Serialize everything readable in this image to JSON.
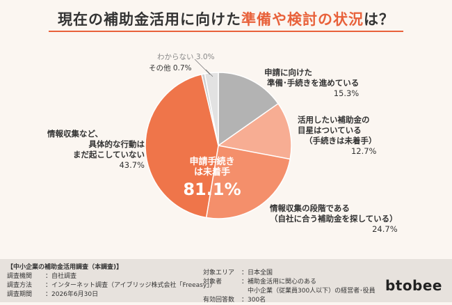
{
  "title": {
    "part1": "現在の補助金活用に向けた",
    "part2": "準備や検討の状況",
    "part3": "は？"
  },
  "chart_data": {
    "type": "pie",
    "slices": [
      {
        "label": "申請に向けた準備・手続きを進めている",
        "value": 15.3,
        "color": "#b3b3b3"
      },
      {
        "label": "活用したい補助金の目星はついている（手続きは未着手）",
        "value": 12.7,
        "color": "#f7ad93"
      },
      {
        "label": "情報収集の段階である（自社に合う補助金を探している）",
        "value": 24.7,
        "color": "#f48f6b"
      },
      {
        "label": "情報収集など、具体的な行動はまだ起こしていない",
        "value": 43.7,
        "color": "#ef754a"
      },
      {
        "label": "その他",
        "value": 0.7,
        "color": "#cfcfcf"
      },
      {
        "label": "わからない",
        "value": 3.0,
        "color": "#e2e2e2"
      }
    ],
    "center": {
      "line1": "申請手続き",
      "line2": "は未着手",
      "value": "81.1%"
    }
  },
  "labels": {
    "s1": {
      "line1": "申請に向けた",
      "line2": "準備･手続きを進めている",
      "pct": "15.3%"
    },
    "s2": {
      "line1": "活用したい補助金の",
      "line2": "目星はついている",
      "line3": "（手続きは未着手）",
      "pct": "12.7%"
    },
    "s3": {
      "line1": "情報収集の段階である",
      "line2": "（自社に合う補助金を探している）",
      "pct": "24.7%"
    },
    "s4": {
      "line1": "情報収集など、",
      "line2": "具体的な行動は",
      "line3": "まだ起こしていない",
      "pct": "43.7%"
    },
    "s5": {
      "text": "その他 0.7%"
    },
    "s6": {
      "text": "わからない 3.0%"
    }
  },
  "footer": {
    "heading": "【中小企業の補助金活用調査（本調査)】",
    "left": [
      {
        "k": "調査機関",
        "v": "：自社調査"
      },
      {
        "k": "調査方法",
        "v": "：インターネット調査（アイブリッジ株式会社「Freeasy」）"
      },
      {
        "k": "調査期間",
        "v": "：2026年6月30日"
      }
    ],
    "right": [
      {
        "k": "対象エリア",
        "v": "：日本全国"
      },
      {
        "k": "対象者",
        "v": "：補助金活用に関心のある"
      },
      {
        "k": "",
        "v": "　中小企業（従業員300人以下）の経営者･役員"
      },
      {
        "k": "有効回答数",
        "v": "：300名"
      }
    ]
  },
  "brand": "btobee"
}
